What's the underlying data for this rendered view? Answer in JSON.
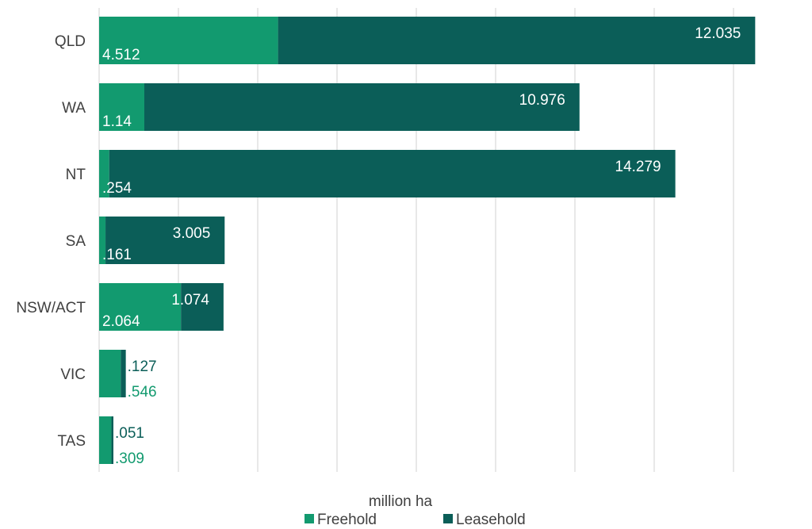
{
  "chart_data": {
    "type": "bar",
    "orientation": "horizontal",
    "stacked": true,
    "categories": [
      "QLD",
      "WA",
      "NT",
      "SA",
      "NSW/ACT",
      "VIC",
      "TAS"
    ],
    "series": [
      {
        "name": "Freehold",
        "values": [
          4.512,
          1.14,
          0.254,
          0.161,
          2.064,
          0.546,
          0.309
        ],
        "labels": [
          "4.512",
          "1.14",
          ".254",
          ".161",
          "2.064",
          ".546",
          ".309"
        ],
        "color": "#129a6f"
      },
      {
        "name": "Leasehold",
        "values": [
          12.035,
          10.976,
          14.279,
          3.005,
          1.074,
          0.127,
          0.051
        ],
        "labels": [
          "12.035",
          "10.976",
          "14.279",
          "3.005",
          "1.074",
          ".127",
          ".051"
        ],
        "color": "#0b5e58"
      }
    ],
    "title": "",
    "xlabel": "million ha",
    "ylabel": "",
    "xlim": [
      0,
      18
    ],
    "grid": "vertical",
    "legend": "bottom-center"
  }
}
